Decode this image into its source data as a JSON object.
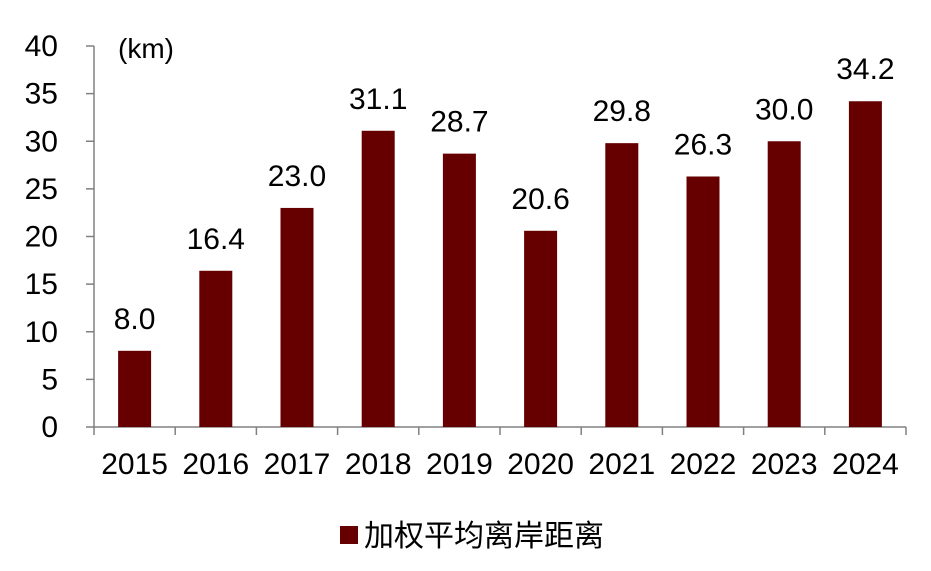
{
  "chart_data": {
    "type": "bar",
    "categories": [
      "2015",
      "2016",
      "2017",
      "2018",
      "2019",
      "2020",
      "2021",
      "2022",
      "2023",
      "2024"
    ],
    "series": [
      {
        "name": "加权平均离岸距离",
        "values": [
          8.0,
          16.4,
          23.0,
          31.1,
          28.7,
          20.6,
          29.8,
          26.3,
          30.0,
          34.2
        ],
        "labels": [
          "8.0",
          "16.4",
          "23.0",
          "31.1",
          "28.7",
          "20.6",
          "29.8",
          "26.3",
          "30.0",
          "34.2"
        ],
        "color": "#660000"
      }
    ],
    "y_unit": "(km)",
    "ylim": [
      0,
      40
    ],
    "yticks": [
      "0",
      "5",
      "10",
      "15",
      "20",
      "25",
      "30",
      "35",
      "40"
    ],
    "grid": false,
    "legend_position": "bottom"
  }
}
